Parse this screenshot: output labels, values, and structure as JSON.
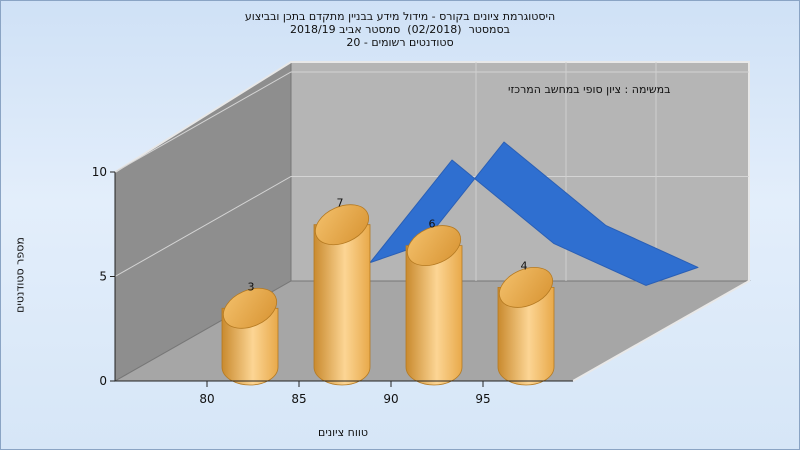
{
  "chart_data": {
    "type": "bar",
    "title_lines": [
      "היסטוגרמת ציונים בקורס - מידול מידע בבניין מתקדם בתכן ובביצוע",
      "בסמסטר  (02/2018)  סמסטר אביב 2018/19",
      "סטודנטים רשומים - 20"
    ],
    "annotation": "במשימה : ציון סופי במחשב המרכזי",
    "xlabel": "טווח ציונים",
    "ylabel": "מספר סטודנטים",
    "x_ticks": [
      "80",
      "85",
      "90",
      "95"
    ],
    "y_ticks": [
      "0",
      "5",
      "10"
    ],
    "ylim": [
      0,
      10
    ],
    "bars": [
      {
        "x": 80,
        "value": 3,
        "label": "3"
      },
      {
        "x": 85,
        "value": 7,
        "label": "7"
      },
      {
        "x": 90,
        "value": 6,
        "label": "6"
      },
      {
        "x": 95,
        "value": 4,
        "label": "4"
      }
    ],
    "trend_series": [
      7,
      10,
      6,
      4
    ],
    "colors": {
      "bar": "#e8a94a",
      "bar_dark": "#c98a2e",
      "bar_light": "#fcd594",
      "trend": "#2f6fd0",
      "back_wall": "#b5b5b5",
      "side_wall": "#8e8e8e",
      "floor": "#a6a6a6"
    },
    "grid": true
  }
}
